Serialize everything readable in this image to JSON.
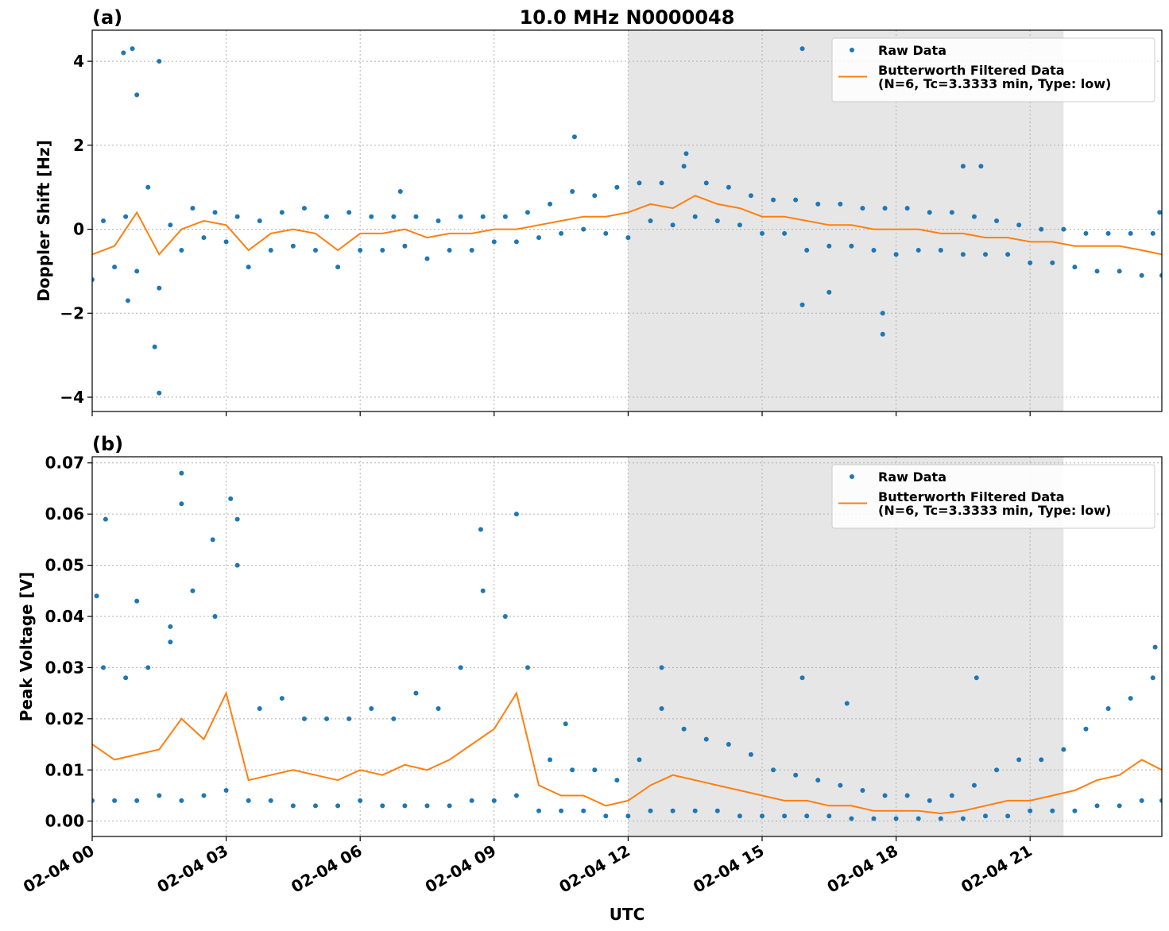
{
  "chart_data": [
    {
      "type": "line",
      "title": "10.0 MHz N0000048",
      "label": "(a)",
      "ylabel": "Doppler Shift [Hz]",
      "xlim": [
        0,
        23.95
      ],
      "xticks": [
        0,
        3,
        6,
        9,
        12,
        15,
        18,
        21
      ],
      "ylim": [
        -4.34,
        4.74
      ],
      "yticks": [
        {
          "value": -4,
          "label": "−4"
        },
        {
          "value": -2,
          "label": "−2"
        },
        0,
        2,
        4
      ],
      "grid": true,
      "shade": [
        12,
        21.75
      ],
      "legend": "upper right",
      "series": [
        {
          "name": "Raw Data",
          "color": "#1f77b4",
          "style": "dots",
          "x": [
            0,
            0.25,
            0.5,
            0.75,
            1,
            1.25,
            1.5,
            1.75,
            2,
            2.25,
            2.5,
            2.75,
            3,
            3.25,
            3.5,
            3.75,
            4,
            4.25,
            4.5,
            4.75,
            5,
            5.25,
            5.5,
            5.75,
            6,
            6.25,
            6.5,
            6.75,
            7,
            7.25,
            7.5,
            7.75,
            8,
            8.25,
            8.5,
            8.75,
            9,
            9.25,
            9.5,
            9.75,
            10,
            10.25,
            10.5,
            10.75,
            11,
            11.25,
            11.5,
            11.75,
            12,
            12.25,
            12.5,
            12.75,
            13,
            13.25,
            13.5,
            13.75,
            14,
            14.25,
            14.5,
            14.75,
            15,
            15.25,
            15.5,
            15.75,
            16,
            16.25,
            16.5,
            16.75,
            17,
            17.25,
            17.5,
            17.75,
            18,
            18.25,
            18.5,
            18.75,
            19,
            19.25,
            19.5,
            19.75,
            20,
            20.25,
            20.5,
            20.75,
            21,
            21.25,
            21.5,
            21.75,
            22,
            22.25,
            22.5,
            22.75,
            23,
            23.25,
            23.5,
            23.75,
            23.95,
            0.7,
            0.9,
            1.0,
            1.5,
            1.5,
            1.4,
            0.8,
            10.8,
            13.3,
            15.9,
            15.9,
            16.5,
            17.7,
            17.7,
            19.5,
            19.9,
            23.9,
            6.9
          ],
          "values": [
            -1.2,
            0.2,
            -0.9,
            0.3,
            -1.0,
            1.0,
            -1.4,
            0.1,
            -0.5,
            0.5,
            -0.2,
            0.4,
            -0.3,
            0.3,
            -0.9,
            0.2,
            -0.5,
            0.4,
            -0.4,
            0.5,
            -0.5,
            0.3,
            -0.9,
            0.4,
            -0.5,
            0.3,
            -0.5,
            0.3,
            -0.4,
            0.3,
            -0.7,
            0.2,
            -0.5,
            0.3,
            -0.5,
            0.3,
            -0.3,
            0.3,
            -0.3,
            0.4,
            -0.2,
            0.6,
            -0.1,
            0.9,
            0.0,
            0.8,
            -0.1,
            1.0,
            -0.2,
            1.1,
            0.2,
            1.1,
            0.1,
            1.5,
            0.3,
            1.1,
            0.2,
            1.0,
            0.1,
            0.8,
            -0.1,
            0.7,
            -0.1,
            0.7,
            -0.5,
            0.6,
            -0.4,
            0.6,
            -0.4,
            0.5,
            -0.5,
            0.5,
            -0.6,
            0.5,
            -0.5,
            0.4,
            -0.5,
            0.4,
            -0.6,
            0.3,
            -0.6,
            0.2,
            -0.6,
            0.1,
            -0.8,
            0.0,
            -0.8,
            0.0,
            -0.9,
            -0.1,
            -1.0,
            -0.1,
            -1.0,
            -0.1,
            -1.1,
            -0.1,
            -1.1,
            4.2,
            4.3,
            3.2,
            4.0,
            -3.9,
            -2.8,
            -1.7,
            2.2,
            1.8,
            4.3,
            -1.8,
            -1.5,
            -2.5,
            -2.0,
            1.5,
            1.5,
            0.4,
            0.9
          ]
        },
        {
          "name": "Butterworth Filtered Data\n(N=6, Tc=3.3333 min, Type: low)",
          "color": "#ff7f0e",
          "style": "line",
          "x": [
            0,
            0.5,
            1,
            1.5,
            2,
            2.5,
            3,
            3.5,
            4,
            4.5,
            5,
            5.5,
            6,
            6.5,
            7,
            7.5,
            8,
            8.5,
            9,
            9.5,
            10,
            10.5,
            11,
            11.5,
            12,
            12.5,
            13,
            13.5,
            14,
            14.5,
            15,
            15.5,
            16,
            16.5,
            17,
            17.5,
            18,
            18.5,
            19,
            19.5,
            20,
            20.5,
            21,
            21.5,
            22,
            22.5,
            23,
            23.5,
            23.95
          ],
          "values": [
            -0.6,
            -0.4,
            0.4,
            -0.6,
            0.0,
            0.2,
            0.1,
            -0.5,
            -0.1,
            0.0,
            -0.1,
            -0.5,
            -0.1,
            -0.1,
            0.0,
            -0.2,
            -0.1,
            -0.1,
            0.0,
            0.0,
            0.1,
            0.2,
            0.3,
            0.3,
            0.4,
            0.6,
            0.5,
            0.8,
            0.6,
            0.5,
            0.3,
            0.3,
            0.2,
            0.1,
            0.1,
            0.0,
            0.0,
            0.0,
            -0.1,
            -0.1,
            -0.2,
            -0.2,
            -0.3,
            -0.3,
            -0.4,
            -0.4,
            -0.4,
            -0.5,
            -0.6
          ]
        }
      ]
    },
    {
      "type": "line",
      "label": "(b)",
      "ylabel": "Peak Voltage [V]",
      "xlabel": "UTC",
      "xlim": [
        0,
        23.95
      ],
      "xticks": [
        {
          "value": 0,
          "label": "02-04 00"
        },
        {
          "value": 3,
          "label": "02-04 03"
        },
        {
          "value": 6,
          "label": "02-04 06"
        },
        {
          "value": 9,
          "label": "02-04 09"
        },
        {
          "value": 12,
          "label": "02-04 12"
        },
        {
          "value": 15,
          "label": "02-04 15"
        },
        {
          "value": 18,
          "label": "02-04 18"
        },
        {
          "value": 21,
          "label": "02-04 21"
        }
      ],
      "ylim": [
        -0.003,
        0.0712
      ],
      "yticks": [
        {
          "value": 0,
          "label": "0.00"
        },
        {
          "value": 0.01,
          "label": "0.01"
        },
        {
          "value": 0.02,
          "label": "0.02"
        },
        {
          "value": 0.03,
          "label": "0.03"
        },
        {
          "value": 0.04,
          "label": "0.04"
        },
        {
          "value": 0.05,
          "label": "0.05"
        },
        {
          "value": 0.06,
          "label": "0.06"
        },
        {
          "value": 0.07,
          "label": "0.07"
        }
      ],
      "grid": true,
      "shade": [
        12,
        21.75
      ],
      "legend": "upper right",
      "series": [
        {
          "name": "Raw Data",
          "color": "#1f77b4",
          "style": "dots",
          "x": [
            0,
            0.25,
            0.5,
            0.75,
            1,
            1.25,
            1.5,
            1.75,
            2,
            2.25,
            2.5,
            2.75,
            3,
            3.25,
            3.5,
            3.75,
            4,
            4.25,
            4.5,
            4.75,
            5,
            5.25,
            5.5,
            5.75,
            6,
            6.25,
            6.5,
            6.75,
            7,
            7.25,
            7.5,
            7.75,
            8,
            8.25,
            8.5,
            8.75,
            9,
            9.25,
            9.5,
            9.75,
            10,
            10.25,
            10.5,
            10.75,
            11,
            11.25,
            11.5,
            11.75,
            12,
            12.25,
            12.5,
            12.75,
            13,
            13.25,
            13.5,
            13.75,
            14,
            14.25,
            14.5,
            14.75,
            15,
            15.25,
            15.5,
            15.75,
            16,
            16.25,
            16.5,
            16.75,
            17,
            17.25,
            17.5,
            17.75,
            18,
            18.25,
            18.5,
            18.75,
            19,
            19.25,
            19.5,
            19.75,
            20,
            20.25,
            20.5,
            20.75,
            21,
            21.25,
            21.5,
            21.75,
            22,
            22.25,
            22.5,
            22.75,
            23,
            23.25,
            23.5,
            23.75,
            23.95,
            0.3,
            1.75,
            2.0,
            2.0,
            2.7,
            3.1,
            3.25,
            8.7,
            9.5,
            10.6,
            12.75,
            15.9,
            16.9,
            19.8,
            23.8,
            1.0,
            0.1
          ],
          "values": [
            0.004,
            0.03,
            0.004,
            0.028,
            0.004,
            0.03,
            0.005,
            0.035,
            0.004,
            0.045,
            0.005,
            0.04,
            0.006,
            0.05,
            0.004,
            0.022,
            0.004,
            0.024,
            0.003,
            0.02,
            0.003,
            0.02,
            0.003,
            0.02,
            0.004,
            0.022,
            0.003,
            0.02,
            0.003,
            0.025,
            0.003,
            0.022,
            0.003,
            0.03,
            0.004,
            0.045,
            0.004,
            0.04,
            0.005,
            0.03,
            0.002,
            0.012,
            0.002,
            0.01,
            0.002,
            0.01,
            0.001,
            0.008,
            0.001,
            0.012,
            0.002,
            0.022,
            0.002,
            0.018,
            0.002,
            0.016,
            0.002,
            0.015,
            0.001,
            0.013,
            0.001,
            0.01,
            0.001,
            0.009,
            0.001,
            0.008,
            0.001,
            0.007,
            0.0005,
            0.006,
            0.0005,
            0.005,
            0.0005,
            0.005,
            0.0005,
            0.004,
            0.0005,
            0.005,
            0.0005,
            0.007,
            0.001,
            0.01,
            0.001,
            0.012,
            0.002,
            0.012,
            0.002,
            0.014,
            0.002,
            0.018,
            0.003,
            0.022,
            0.003,
            0.024,
            0.004,
            0.028,
            0.004,
            0.059,
            0.038,
            0.068,
            0.062,
            0.055,
            0.063,
            0.059,
            0.057,
            0.06,
            0.019,
            0.03,
            0.028,
            0.023,
            0.028,
            0.034,
            0.043,
            0.044
          ]
        },
        {
          "name": "Butterworth Filtered Data\n(N=6, Tc=3.3333 min, Type: low)",
          "color": "#ff7f0e",
          "style": "line",
          "x": [
            0,
            0.5,
            1,
            1.5,
            2,
            2.5,
            3,
            3.5,
            4,
            4.5,
            5,
            5.5,
            6,
            6.5,
            7,
            7.5,
            8,
            8.5,
            9,
            9.5,
            10,
            10.5,
            11,
            11.5,
            12,
            12.5,
            13,
            13.5,
            14,
            14.5,
            15,
            15.5,
            16,
            16.5,
            17,
            17.5,
            18,
            18.5,
            19,
            19.5,
            20,
            20.5,
            21,
            21.5,
            22,
            22.5,
            23,
            23.5,
            23.95
          ],
          "values": [
            0.015,
            0.012,
            0.013,
            0.014,
            0.02,
            0.016,
            0.025,
            0.008,
            0.009,
            0.01,
            0.009,
            0.008,
            0.01,
            0.009,
            0.011,
            0.01,
            0.012,
            0.015,
            0.018,
            0.025,
            0.007,
            0.005,
            0.005,
            0.003,
            0.004,
            0.007,
            0.009,
            0.008,
            0.007,
            0.006,
            0.005,
            0.004,
            0.004,
            0.003,
            0.003,
            0.002,
            0.002,
            0.002,
            0.0015,
            0.002,
            0.003,
            0.004,
            0.004,
            0.005,
            0.006,
            0.008,
            0.009,
            0.012,
            0.01
          ]
        }
      ]
    }
  ]
}
